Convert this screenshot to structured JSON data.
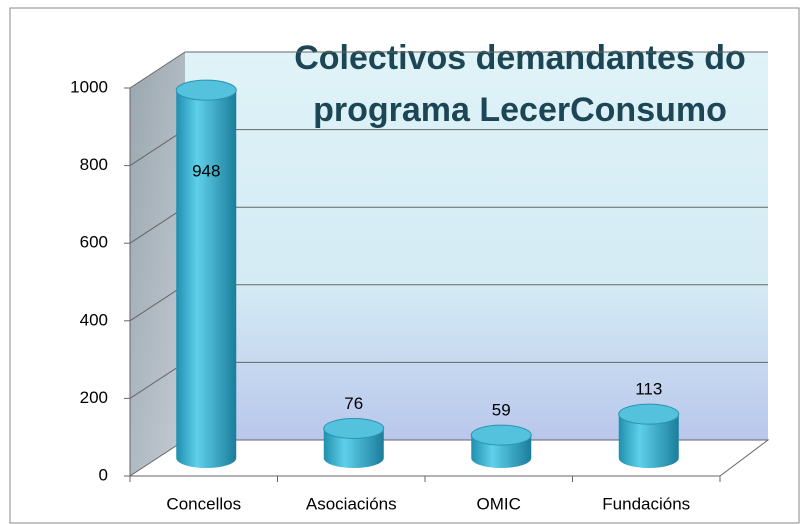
{
  "chart_data": {
    "type": "bar3d",
    "title": "Colectivos demandantes do programa LecerConsumo",
    "categories": [
      "Concellos",
      "Asociacións",
      "OMIC",
      "Fundacións"
    ],
    "values": [
      948,
      76,
      59,
      113
    ],
    "color": "#3bb3d0",
    "ylim": [
      0,
      1000
    ],
    "yticks": [
      0,
      200,
      400,
      600,
      800,
      1000
    ],
    "grid": true
  }
}
